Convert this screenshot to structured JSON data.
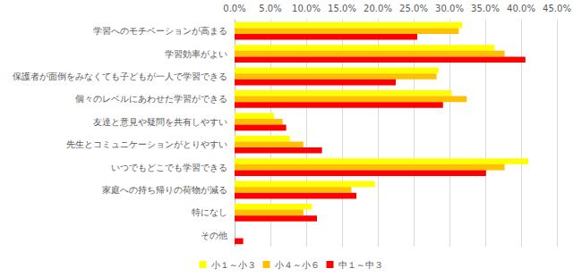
{
  "chart_data": {
    "type": "bar",
    "orientation": "horizontal",
    "categories": [
      "学習へのモチベーションが高まる",
      "学習効率がよい",
      "保護者が面倒をみなくても子どもが一人で学習できる",
      "個々のレベルにあわせた学習ができる",
      "友達と意見や疑問を共有しやすい",
      "先生とコミュニケーションがとりやすい",
      "いつでもどこでも学習できる",
      "家庭への持ち帰りの荷物が減る",
      "特になし",
      "その他"
    ],
    "series": [
      {
        "name": "小１～小３",
        "color": "#ffff00",
        "values": [
          31.8,
          36.3,
          28.5,
          30.3,
          5.5,
          7.7,
          41.0,
          19.6,
          10.8,
          0
        ]
      },
      {
        "name": "小４～小６",
        "color": "#ffc000",
        "values": [
          31.3,
          37.7,
          28.2,
          32.4,
          6.7,
          9.6,
          37.7,
          16.3,
          9.6,
          0
        ]
      },
      {
        "name": "中１～中３",
        "color": "#ff0000",
        "values": [
          25.5,
          40.6,
          22.5,
          29.1,
          7.2,
          12.2,
          35.1,
          17.0,
          11.5,
          1.2
        ]
      }
    ],
    "xlim": [
      0,
      45
    ],
    "xticks": [
      {
        "value": 0,
        "label": "0.0%"
      },
      {
        "value": 5,
        "label": "5.0%"
      },
      {
        "value": 10,
        "label": "10.0%"
      },
      {
        "value": 15,
        "label": "15.0%"
      },
      {
        "value": 20,
        "label": "20.0%"
      },
      {
        "value": 25,
        "label": "25.0%"
      },
      {
        "value": 30,
        "label": "30.0%"
      },
      {
        "value": 35,
        "label": "35.0%"
      },
      {
        "value": 40,
        "label": "40.0%"
      },
      {
        "value": 45,
        "label": "45.0%"
      }
    ],
    "grid": true,
    "legend": "bottom"
  }
}
